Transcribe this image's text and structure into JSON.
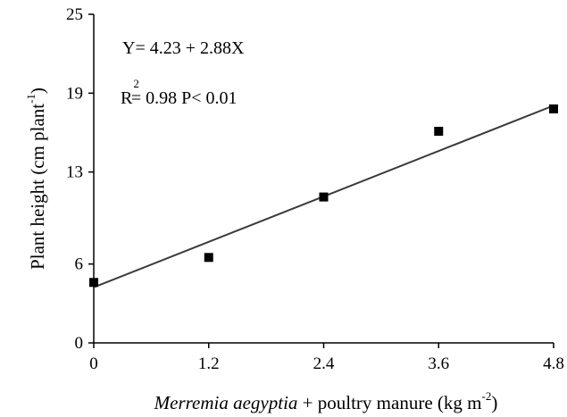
{
  "chart_data": {
    "type": "scatter",
    "title": "",
    "xlabel_italic": "Merremia aegyptia",
    "xlabel_rest": " + poultry manure (kg m",
    "xlabel_sup": "-2",
    "xlabel_close": ")",
    "ylabel_main": "Plant height (cm plant",
    "ylabel_sup": "-1",
    "ylabel_close": ")",
    "x_ticks": [
      "0",
      "1.2",
      "2.4",
      "3.6",
      "4.8"
    ],
    "y_ticks": [
      "0",
      "6",
      "13",
      "19",
      "25"
    ],
    "xlim": [
      0,
      4.8
    ],
    "ylim": [
      0,
      25
    ],
    "x": [
      0,
      1.2,
      2.4,
      3.6,
      4.8
    ],
    "y": [
      4.6,
      6.5,
      11.1,
      16.1,
      17.8
    ],
    "fit": {
      "intercept": 4.23,
      "slope": 2.88
    },
    "equation": "Y= 4.23 + 2.88X",
    "r2_label": "R",
    "r2_sup": "2",
    "r2_text": "= 0.98 P< 0.01",
    "marker": "square",
    "colors": {
      "marker": "#000000",
      "line": "#3a3a3a",
      "axis": "#000000"
    }
  }
}
